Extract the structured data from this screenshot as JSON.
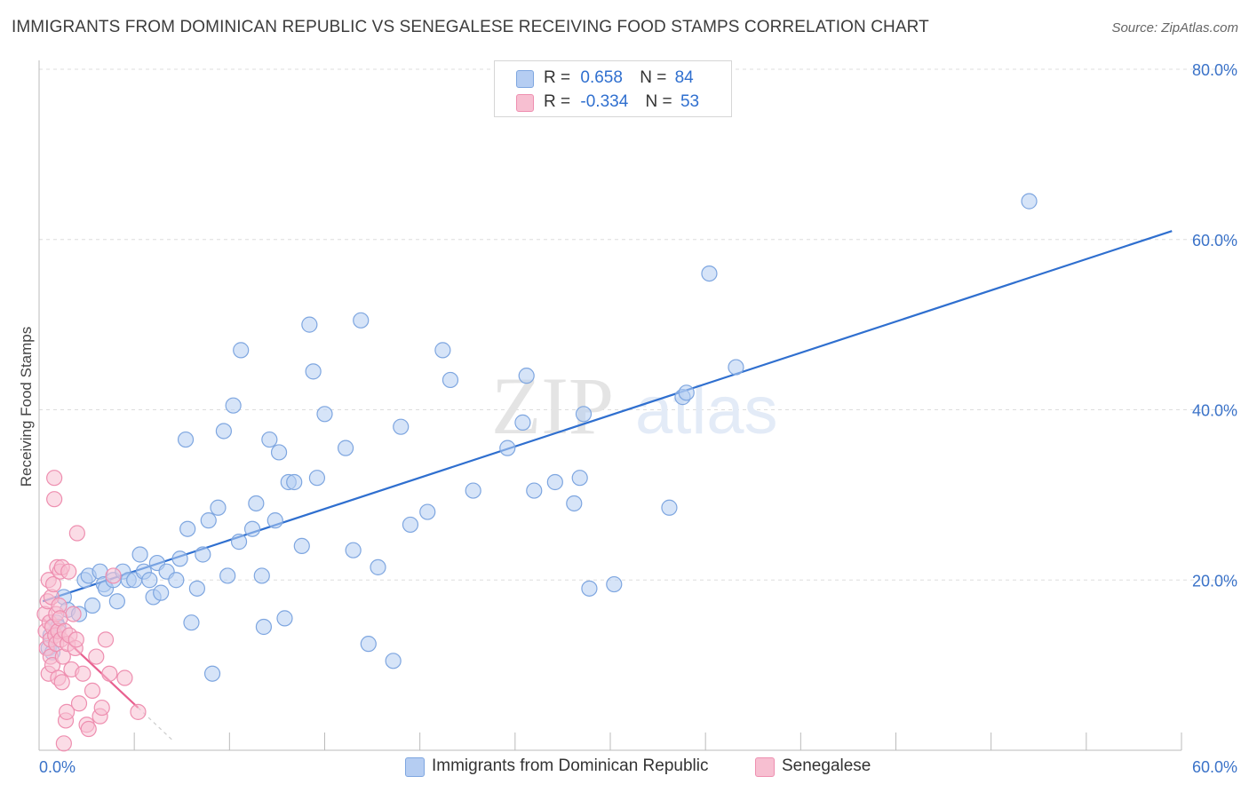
{
  "title": "IMMIGRANTS FROM DOMINICAN REPUBLIC VS SENEGALESE RECEIVING FOOD STAMPS CORRELATION CHART",
  "source": "Source: ZipAtlas.com",
  "watermark": {
    "zip": "ZIP",
    "atlas": "atlas"
  },
  "legend": {
    "rows": [
      {
        "r_label": "R =",
        "r_value": "0.658",
        "n_label": "N =",
        "n_value": "84"
      },
      {
        "r_label": "R =",
        "r_value": "-0.334",
        "n_label": "N =",
        "n_value": "53"
      }
    ]
  },
  "bottom_legend": {
    "series1": "Immigrants from Dominican Republic",
    "series2": "Senegalese"
  },
  "colors": {
    "blue_fill": "#b5cdf2",
    "blue_stroke": "#7ea6e0",
    "blue_line": "#2f6fcf",
    "pink_fill": "#f7bfd1",
    "pink_stroke": "#ee8fb0",
    "pink_line": "#e8608f",
    "axis_label": "#3a72c8",
    "grid": "#dddddd"
  },
  "chart_data": {
    "type": "scatter",
    "title": "IMMIGRANTS FROM DOMINICAN REPUBLIC VS SENEGALESE RECEIVING FOOD STAMPS CORRELATION CHART",
    "xlabel": "",
    "ylabel": "Receiving Food Stamps",
    "xlim": [
      0,
      60
    ],
    "ylim": [
      0,
      80
    ],
    "x_ticks": [
      {
        "value": 0,
        "label": "0.0%"
      },
      {
        "value": 60,
        "label": "60.0%"
      }
    ],
    "y_ticks": [
      {
        "value": 20,
        "label": "20.0%"
      },
      {
        "value": 40,
        "label": "40.0%"
      },
      {
        "value": 60,
        "label": "60.0%"
      },
      {
        "value": 80,
        "label": "80.0%"
      }
    ],
    "series": [
      {
        "name": "Immigrants from Dominican Republic",
        "R": 0.658,
        "N": 84,
        "trend": {
          "x": [
            0.2,
            59.5
          ],
          "y": [
            17.5,
            61.0
          ],
          "dashed_to": null
        },
        "points": [
          [
            0.5,
            12
          ],
          [
            0.6,
            13.5
          ],
          [
            0.7,
            11.5
          ],
          [
            0.9,
            15
          ],
          [
            1.0,
            14.5
          ],
          [
            1.3,
            18
          ],
          [
            1.5,
            16.5
          ],
          [
            2.1,
            16
          ],
          [
            2.4,
            20
          ],
          [
            2.8,
            17
          ],
          [
            2.6,
            20.5
          ],
          [
            3.2,
            21
          ],
          [
            3.4,
            19.5
          ],
          [
            3.5,
            19
          ],
          [
            3.9,
            20
          ],
          [
            4.1,
            17.5
          ],
          [
            4.4,
            21
          ],
          [
            4.7,
            20
          ],
          [
            5.0,
            20
          ],
          [
            5.3,
            23
          ],
          [
            5.5,
            21
          ],
          [
            5.8,
            20
          ],
          [
            6.0,
            18
          ],
          [
            6.2,
            22
          ],
          [
            6.4,
            18.5
          ],
          [
            6.7,
            21
          ],
          [
            7.2,
            20
          ],
          [
            7.4,
            22.5
          ],
          [
            7.7,
            36.5
          ],
          [
            7.8,
            26
          ],
          [
            8.0,
            15
          ],
          [
            8.3,
            19
          ],
          [
            8.6,
            23
          ],
          [
            8.9,
            27
          ],
          [
            9.1,
            9
          ],
          [
            9.4,
            28.5
          ],
          [
            9.7,
            37.5
          ],
          [
            9.9,
            20.5
          ],
          [
            10.2,
            40.5
          ],
          [
            10.5,
            24.5
          ],
          [
            10.6,
            47
          ],
          [
            11.2,
            26
          ],
          [
            11.4,
            29
          ],
          [
            11.7,
            20.5
          ],
          [
            11.8,
            14.5
          ],
          [
            12.1,
            36.5
          ],
          [
            12.4,
            27
          ],
          [
            12.6,
            35
          ],
          [
            12.9,
            15.5
          ],
          [
            13.1,
            31.5
          ],
          [
            13.4,
            31.5
          ],
          [
            13.8,
            24
          ],
          [
            14.2,
            50
          ],
          [
            14.4,
            44.5
          ],
          [
            14.6,
            32
          ],
          [
            15.0,
            39.5
          ],
          [
            16.1,
            35.5
          ],
          [
            16.5,
            23.5
          ],
          [
            16.9,
            50.5
          ],
          [
            17.3,
            12.5
          ],
          [
            17.8,
            21.5
          ],
          [
            18.6,
            10.5
          ],
          [
            19.0,
            38
          ],
          [
            19.5,
            26.5
          ],
          [
            20.4,
            28
          ],
          [
            21.2,
            47
          ],
          [
            21.6,
            43.5
          ],
          [
            22.8,
            30.5
          ],
          [
            24.6,
            35.5
          ],
          [
            25.4,
            38.5
          ],
          [
            25.6,
            44
          ],
          [
            26.0,
            30.5
          ],
          [
            27.1,
            31.5
          ],
          [
            28.1,
            29
          ],
          [
            28.4,
            32
          ],
          [
            28.6,
            39.5
          ],
          [
            28.9,
            19
          ],
          [
            30.2,
            19.5
          ],
          [
            33.1,
            28.5
          ],
          [
            33.8,
            41.5
          ],
          [
            34.0,
            42
          ],
          [
            35.2,
            56
          ],
          [
            36.6,
            45
          ],
          [
            52.0,
            64.5
          ]
        ]
      },
      {
        "name": "Senegalese",
        "R": -0.334,
        "N": 53,
        "trend": {
          "x": [
            0.2,
            5.2
          ],
          "y": [
            15.5,
            5.0
          ],
          "dashed_to": {
            "x": 7.0,
            "y": 1.2
          }
        },
        "points": [
          [
            0.3,
            16
          ],
          [
            0.35,
            14
          ],
          [
            0.4,
            12
          ],
          [
            0.45,
            17.5
          ],
          [
            0.5,
            9
          ],
          [
            0.5,
            20
          ],
          [
            0.55,
            15
          ],
          [
            0.6,
            13
          ],
          [
            0.6,
            11
          ],
          [
            0.65,
            18
          ],
          [
            0.7,
            14.5
          ],
          [
            0.7,
            10
          ],
          [
            0.75,
            19.5
          ],
          [
            0.8,
            32
          ],
          [
            0.8,
            29.5
          ],
          [
            0.85,
            13.5
          ],
          [
            0.9,
            12.5
          ],
          [
            0.9,
            16
          ],
          [
            0.95,
            21.5
          ],
          [
            1.0,
            14
          ],
          [
            1.0,
            8.5
          ],
          [
            1.05,
            17
          ],
          [
            1.1,
            21
          ],
          [
            1.1,
            15.5
          ],
          [
            1.15,
            13
          ],
          [
            1.2,
            21.5
          ],
          [
            1.2,
            8
          ],
          [
            1.25,
            11
          ],
          [
            1.3,
            0.8
          ],
          [
            1.35,
            14
          ],
          [
            1.4,
            3.5
          ],
          [
            1.45,
            4.5
          ],
          [
            1.5,
            12.5
          ],
          [
            1.55,
            21
          ],
          [
            1.6,
            13.5
          ],
          [
            1.7,
            9.5
          ],
          [
            1.8,
            16
          ],
          [
            1.9,
            12
          ],
          [
            1.95,
            13
          ],
          [
            2.0,
            25.5
          ],
          [
            2.1,
            5.5
          ],
          [
            2.3,
            9
          ],
          [
            2.5,
            3
          ],
          [
            2.6,
            2.5
          ],
          [
            2.8,
            7
          ],
          [
            3.0,
            11
          ],
          [
            3.2,
            4
          ],
          [
            3.3,
            5
          ],
          [
            3.5,
            13
          ],
          [
            3.7,
            9
          ],
          [
            3.9,
            20.5
          ],
          [
            4.5,
            8.5
          ],
          [
            5.2,
            4.5
          ]
        ]
      }
    ]
  }
}
